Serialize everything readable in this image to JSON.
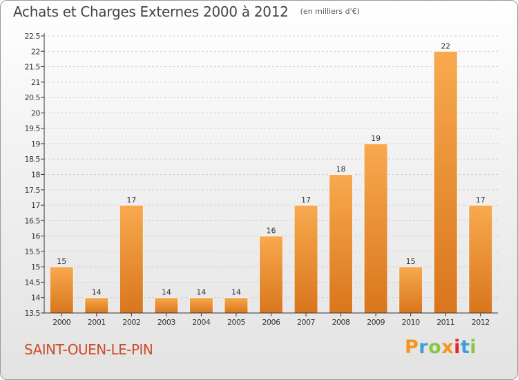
{
  "header": {
    "title": "Achats et Charges Externes 2000 à 2012",
    "subtitle": "(en milliers d'€)"
  },
  "footer": {
    "location": "SAINT-OUEN-LE-PIN",
    "brand": "Proxiti",
    "brand_colors": [
      "#f7941d",
      "#3aa0d8",
      "#8cc63f",
      "#f7941d",
      "#e8262a",
      "#3aa0d8",
      "#8cc63f"
    ]
  },
  "colors": {
    "bar_light": "#f8a94e",
    "bar_dark": "#d9761d",
    "axis": "#333333",
    "grid": "#cfcfcf",
    "location_text": "#cc4b2a"
  },
  "chart_data": {
    "type": "bar",
    "categories": [
      "2000",
      "2001",
      "2002",
      "2003",
      "2004",
      "2005",
      "2006",
      "2007",
      "2008",
      "2009",
      "2010",
      "2011",
      "2012"
    ],
    "values": [
      15,
      14,
      17,
      14,
      14,
      14,
      16,
      17,
      18,
      19,
      15,
      22,
      17
    ],
    "ylim": [
      13.5,
      22.5
    ],
    "yticks": [
      "13.5",
      "14",
      "14.5",
      "15",
      "15.5",
      "16",
      "16.5",
      "17",
      "17.5",
      "18",
      "18.5",
      "19",
      "19.5",
      "20",
      "20.5",
      "21",
      "21.5",
      "22",
      "22.5"
    ],
    "grid": true
  }
}
